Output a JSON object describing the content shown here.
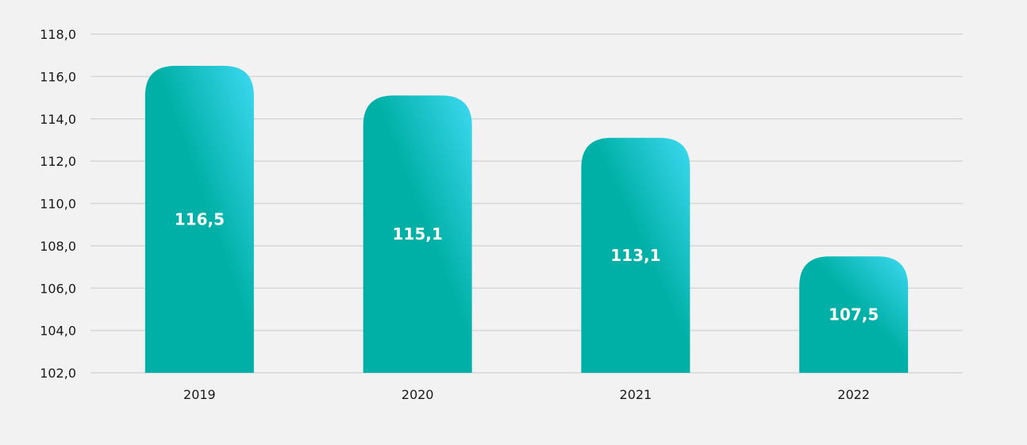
{
  "colors": {
    "background": "#f2f2f2",
    "gridline": "#d6d6d6",
    "bar_base": "#00b0a6",
    "bar_highlight": "#3dd9f2",
    "value_text": "#ffffff",
    "axis_text": "#1a1a1a"
  },
  "chart_data": {
    "type": "bar",
    "title": "",
    "xlabel": "",
    "ylabel": "",
    "categories": [
      "2019",
      "2020",
      "2021",
      "2022"
    ],
    "values": [
      116.5,
      115.1,
      113.1,
      107.5
    ],
    "value_labels": [
      "116,5",
      "115,1",
      "113,1",
      "107,5"
    ],
    "ylim": [
      102,
      118
    ],
    "yticks": [
      102,
      104,
      106,
      108,
      110,
      112,
      114,
      116,
      118
    ],
    "ytick_labels": [
      "102,0",
      "104,0",
      "106,0",
      "108,0",
      "110,0",
      "112,0",
      "114,0",
      "116,0",
      "118,0"
    ],
    "grid": true,
    "legend": "none"
  }
}
